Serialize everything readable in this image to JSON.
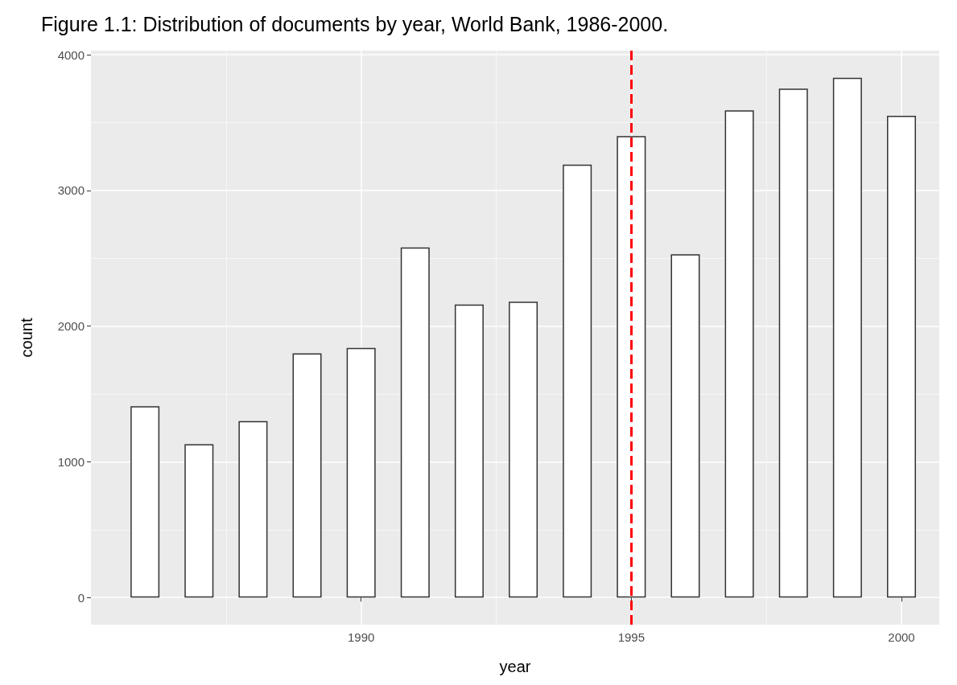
{
  "chart_data": {
    "type": "bar",
    "title": "Figure 1.1: Distribution of documents by year, World Bank, 1986-2000.",
    "xlabel": "year",
    "ylabel": "count",
    "x": [
      1986,
      1987,
      1988,
      1989,
      1990,
      1991,
      1992,
      1993,
      1994,
      1995,
      1996,
      1997,
      1998,
      1999,
      2000
    ],
    "values": [
      1410,
      1130,
      1300,
      1800,
      1840,
      2580,
      2160,
      2180,
      3190,
      3400,
      2530,
      3590,
      3750,
      3830,
      3550
    ],
    "color": "#ffffff",
    "xlim": [
      1985,
      2000.7
    ],
    "xticks": [
      1990,
      1995,
      2000
    ],
    "ylim": [
      -200,
      4030
    ],
    "yticks": [
      0,
      1000,
      2000,
      3000,
      4000
    ],
    "grid": true,
    "ref_lines": [
      {
        "axis": "x",
        "value": 1995,
        "color": "#ff0000",
        "line_style": "dashed"
      }
    ]
  }
}
